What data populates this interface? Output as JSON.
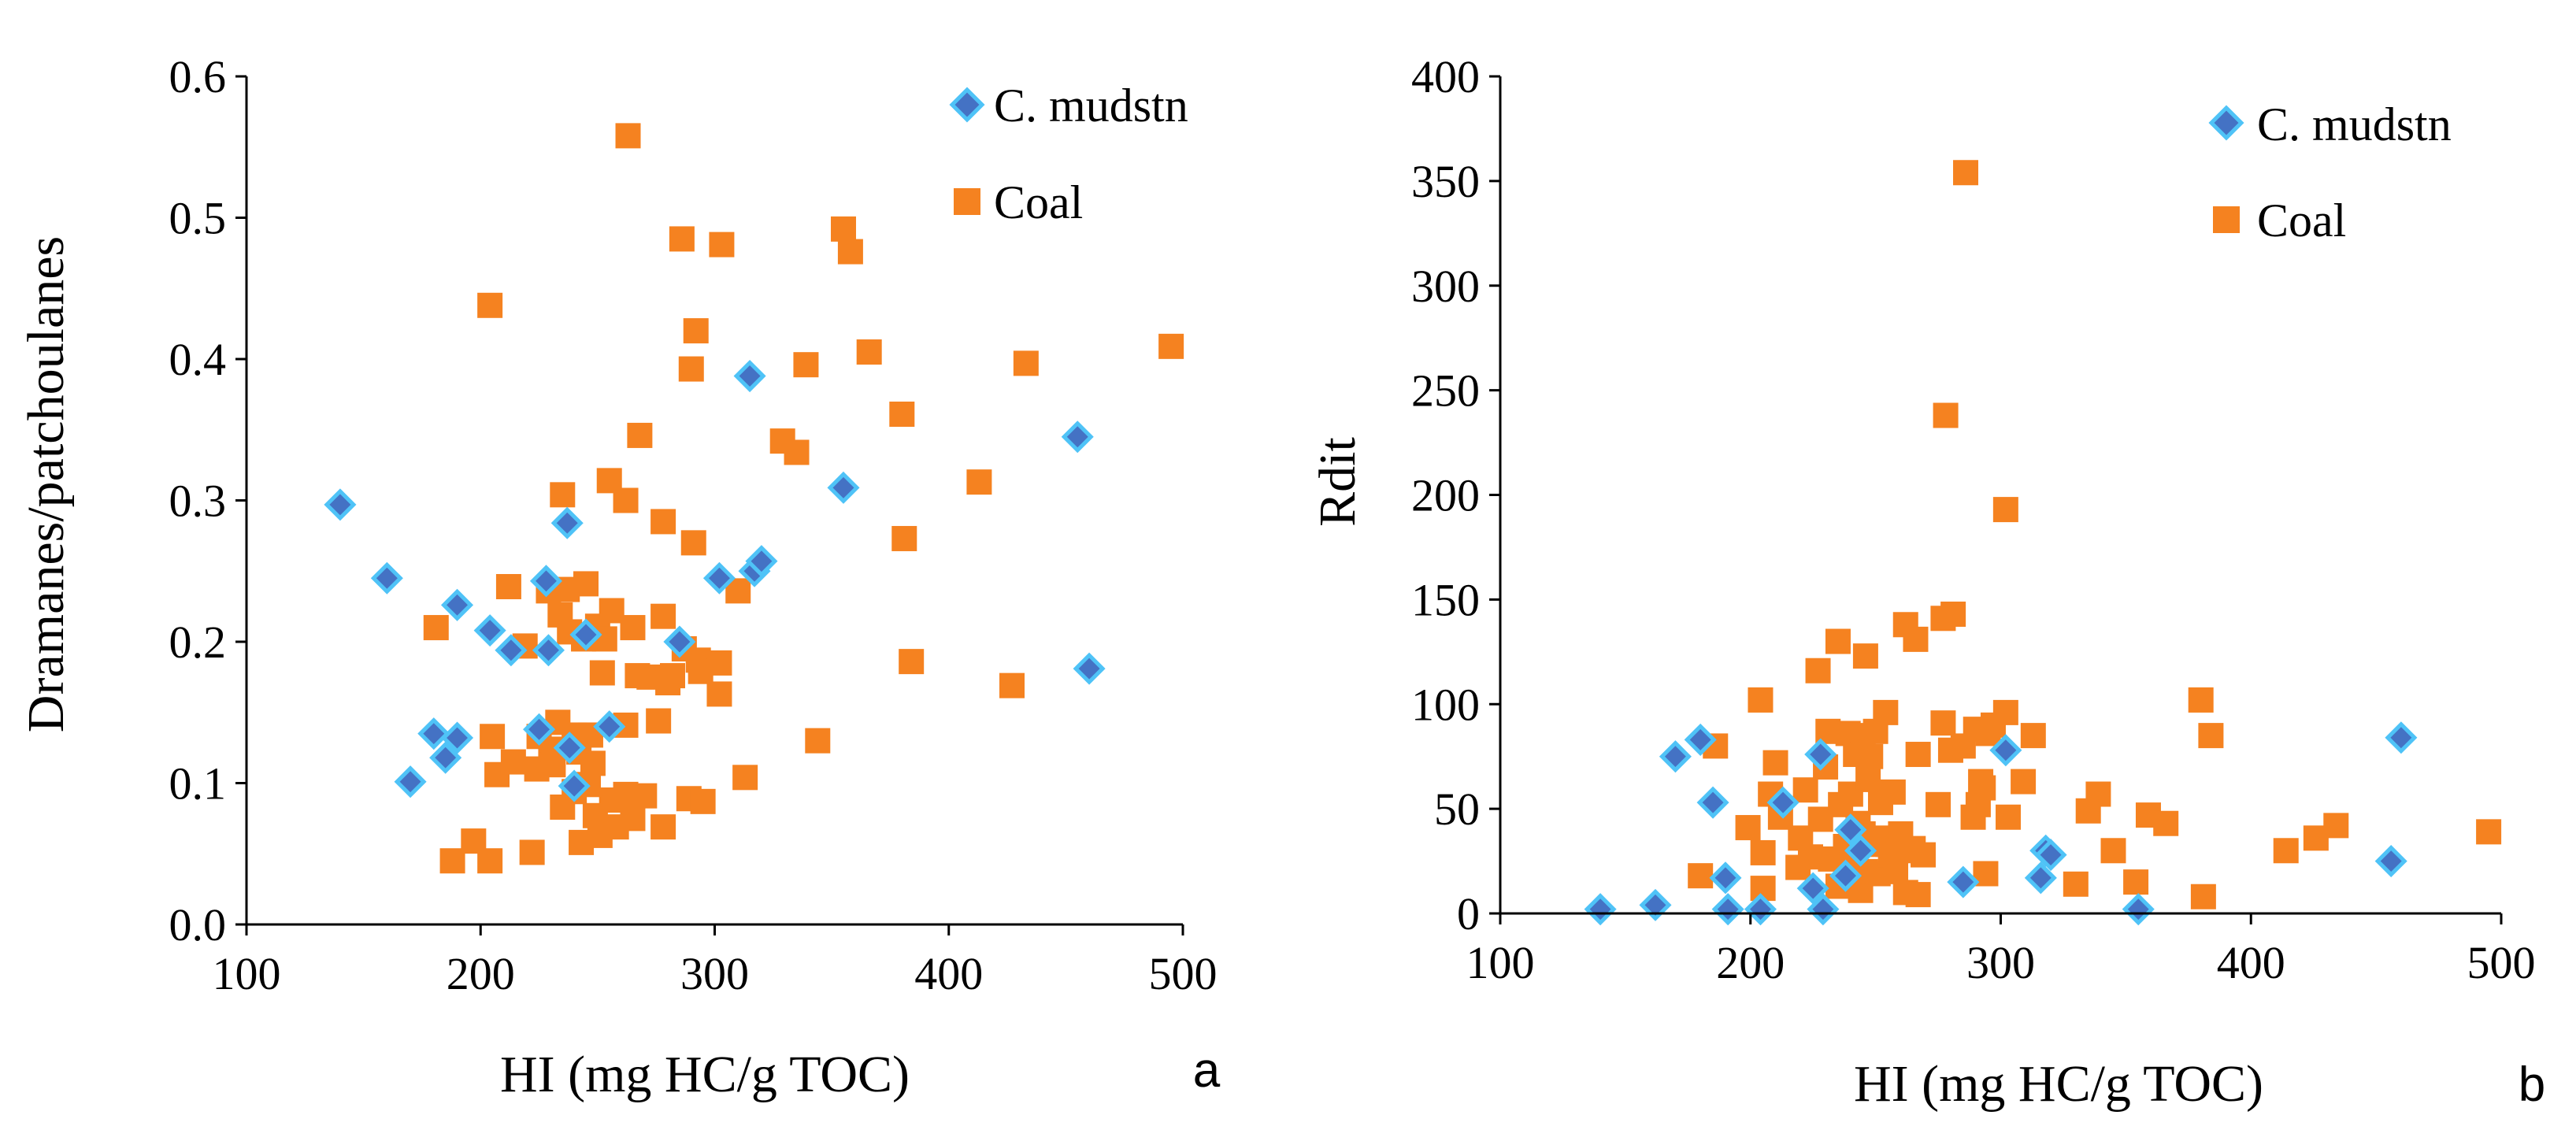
{
  "colors": {
    "mudstone_fill": "#4472C4",
    "mudstone_edge": "#4FC3F7",
    "coal": "#F58220",
    "axis": "#000000"
  },
  "chart_data": [
    {
      "id": "a",
      "type": "scatter",
      "panel_label": "a",
      "xlabel": "HI (mg HC/g TOC)",
      "ylabel": "Dramanes/patchoulanes",
      "xlim": [
        100,
        500
      ],
      "ylim": [
        0,
        0.6
      ],
      "xticks": [
        "100",
        "200",
        "300",
        "400",
        "500"
      ],
      "yticks": [
        "0.0",
        "0.1",
        "0.2",
        "0.3",
        "0.4",
        "0.5",
        "0.6"
      ],
      "legend_position": "top-right",
      "series": [
        {
          "name": "C. mudstn",
          "marker": "diamond",
          "points": [
            [
              140,
              0.297
            ],
            [
              160,
              0.245
            ],
            [
              170,
              0.101
            ],
            [
              180,
              0.135
            ],
            [
              185,
              0.118
            ],
            [
              190,
              0.226
            ],
            [
              190,
              0.132
            ],
            [
              204,
              0.208
            ],
            [
              213,
              0.194
            ],
            [
              225,
              0.138
            ],
            [
              228,
              0.243
            ],
            [
              229,
              0.194
            ],
            [
              237,
              0.284
            ],
            [
              238,
              0.125
            ],
            [
              240,
              0.098
            ],
            [
              245,
              0.205
            ],
            [
              255,
              0.14
            ],
            [
              285,
              0.2
            ],
            [
              302,
              0.245
            ],
            [
              315,
              0.388
            ],
            [
              317,
              0.25
            ],
            [
              320,
              0.257
            ],
            [
              355,
              0.309
            ],
            [
              455,
              0.345
            ],
            [
              460,
              0.181
            ]
          ]
        },
        {
          "name": "Coal",
          "marker": "square",
          "points": [
            [
              181,
              0.21
            ],
            [
              188,
              0.045
            ],
            [
              197,
              0.059
            ],
            [
              204,
              0.438
            ],
            [
              204,
              0.045
            ],
            [
              205,
              0.133
            ],
            [
              207,
              0.106
            ],
            [
              212,
              0.239
            ],
            [
              214,
              0.115
            ],
            [
              219,
              0.197
            ],
            [
              222,
              0.051
            ],
            [
              224,
              0.11
            ],
            [
              225,
              0.133
            ],
            [
              229,
              0.236
            ],
            [
              230,
              0.124
            ],
            [
              231,
              0.113
            ],
            [
              233,
              0.143
            ],
            [
              234,
              0.219
            ],
            [
              235,
              0.304
            ],
            [
              235,
              0.083
            ],
            [
              237,
              0.237
            ],
            [
              238,
              0.207
            ],
            [
              240,
              0.094
            ],
            [
              240,
              0.134
            ],
            [
              242,
              0.122
            ],
            [
              243,
              0.058
            ],
            [
              244,
              0.202
            ],
            [
              245,
              0.241
            ],
            [
              246,
              0.099
            ],
            [
              247,
              0.134
            ],
            [
              248,
              0.114
            ],
            [
              249,
              0.077
            ],
            [
              250,
              0.211
            ],
            [
              251,
              0.063
            ],
            [
              252,
              0.178
            ],
            [
              253,
              0.202
            ],
            [
              255,
              0.314
            ],
            [
              256,
              0.088
            ],
            [
              256,
              0.222
            ],
            [
              258,
              0.069
            ],
            [
              262,
              0.3
            ],
            [
              262,
              0.141
            ],
            [
              262,
              0.092
            ],
            [
              263,
              0.558
            ],
            [
              265,
              0.21
            ],
            [
              265,
              0.075
            ],
            [
              267,
              0.176
            ],
            [
              268,
              0.346
            ],
            [
              270,
              0.091
            ],
            [
              272,
              0.175
            ],
            [
              276,
              0.144
            ],
            [
              278,
              0.285
            ],
            [
              278,
              0.069
            ],
            [
              278,
              0.218
            ],
            [
              280,
              0.171
            ],
            [
              282,
              0.176
            ],
            [
              286,
              0.485
            ],
            [
              287,
              0.195
            ],
            [
              289,
              0.089
            ],
            [
              290,
              0.393
            ],
            [
              291,
              0.27
            ],
            [
              292,
              0.42
            ],
            [
              293,
              0.187
            ],
            [
              294,
              0.179
            ],
            [
              295,
              0.087
            ],
            [
              302,
              0.185
            ],
            [
              302,
              0.163
            ],
            [
              303,
              0.481
            ],
            [
              310,
              0.236
            ],
            [
              313,
              0.104
            ],
            [
              329,
              0.342
            ],
            [
              335,
              0.334
            ],
            [
              339,
              0.396
            ],
            [
              344,
              0.13
            ],
            [
              355,
              0.492
            ],
            [
              358,
              0.476
            ],
            [
              366,
              0.405
            ],
            [
              380,
              0.361
            ],
            [
              381,
              0.273
            ],
            [
              384,
              0.186
            ],
            [
              413,
              0.313
            ],
            [
              427,
              0.169
            ],
            [
              433,
              0.397
            ],
            [
              495,
              0.409
            ]
          ]
        }
      ]
    },
    {
      "id": "b",
      "type": "scatter",
      "panel_label": "b",
      "xlabel": "HI (mg HC/g TOC)",
      "ylabel": "Rdit",
      "xlim": [
        100,
        500
      ],
      "ylim": [
        0,
        400
      ],
      "xticks": [
        "100",
        "200",
        "300",
        "400",
        "500"
      ],
      "yticks": [
        "0",
        "50",
        "100",
        "150",
        "200",
        "250",
        "300",
        "350",
        "400"
      ],
      "legend_position": "top-right",
      "series": [
        {
          "name": "C. mudstn",
          "marker": "diamond",
          "points": [
            [
              140,
              2
            ],
            [
              162,
              4
            ],
            [
              170,
              75
            ],
            [
              180,
              83
            ],
            [
              185,
              53
            ],
            [
              190,
              17
            ],
            [
              191,
              2
            ],
            [
              204,
              2
            ],
            [
              213,
              53
            ],
            [
              225,
              12
            ],
            [
              228,
              76
            ],
            [
              229,
              2
            ],
            [
              238,
              18
            ],
            [
              240,
              40
            ],
            [
              244,
              30
            ],
            [
              285,
              15
            ],
            [
              302,
              78
            ],
            [
              316,
              17
            ],
            [
              318,
              30
            ],
            [
              320,
              28
            ],
            [
              355,
              2
            ],
            [
              456,
              25
            ],
            [
              460,
              84
            ]
          ]
        },
        {
          "name": "Coal",
          "marker": "square",
          "points": [
            [
              180,
              18
            ],
            [
              186,
              80
            ],
            [
              199,
              41
            ],
            [
              204,
              102
            ],
            [
              205,
              29
            ],
            [
              205,
              12
            ],
            [
              208,
              57
            ],
            [
              210,
              72
            ],
            [
              212,
              46
            ],
            [
              219,
              22
            ],
            [
              220,
              36
            ],
            [
              222,
              59
            ],
            [
              224,
              27
            ],
            [
              227,
              116
            ],
            [
              228,
              45
            ],
            [
              230,
              70
            ],
            [
              231,
              87
            ],
            [
              232,
              26
            ],
            [
              235,
              13
            ],
            [
              235,
              130
            ],
            [
              236,
              52
            ],
            [
              238,
              32
            ],
            [
              239,
              86
            ],
            [
              240,
              57
            ],
            [
              241,
              22
            ],
            [
              242,
              76
            ],
            [
              243,
              43
            ],
            [
              244,
              11
            ],
            [
              245,
              38
            ],
            [
              245,
              85
            ],
            [
              246,
              20
            ],
            [
              246,
              123
            ],
            [
              247,
              64
            ],
            [
              248,
              75
            ],
            [
              249,
              33
            ],
            [
              250,
              87
            ],
            [
              251,
              19
            ],
            [
              252,
              53
            ],
            [
              253,
              36
            ],
            [
              254,
              96
            ],
            [
              255,
              33
            ],
            [
              256,
              28
            ],
            [
              257,
              58
            ],
            [
              258,
              20
            ],
            [
              259,
              30
            ],
            [
              260,
              38
            ],
            [
              262,
              10
            ],
            [
              262,
              138
            ],
            [
              265,
              31
            ],
            [
              266,
              131
            ],
            [
              267,
              9
            ],
            [
              267,
              76
            ],
            [
              269,
              28
            ],
            [
              275,
              52
            ],
            [
              277,
              91
            ],
            [
              277,
              141
            ],
            [
              278,
              238
            ],
            [
              280,
              78
            ],
            [
              281,
              143
            ],
            [
              285,
              80
            ],
            [
              286,
              354
            ],
            [
              289,
              46
            ],
            [
              290,
              88
            ],
            [
              291,
              52
            ],
            [
              292,
              63
            ],
            [
              293,
              60
            ],
            [
              294,
              19
            ],
            [
              295,
              86
            ],
            [
              297,
              90
            ],
            [
              302,
              96
            ],
            [
              302,
              193
            ],
            [
              303,
              46
            ],
            [
              309,
              63
            ],
            [
              313,
              85
            ],
            [
              330,
              14
            ],
            [
              335,
              49
            ],
            [
              339,
              57
            ],
            [
              345,
              30
            ],
            [
              354,
              15
            ],
            [
              359,
              47
            ],
            [
              366,
              43
            ],
            [
              380,
              102
            ],
            [
              381,
              8
            ],
            [
              384,
              85
            ],
            [
              414,
              30
            ],
            [
              426,
              36
            ],
            [
              434,
              42
            ],
            [
              495,
              39
            ]
          ]
        }
      ]
    }
  ]
}
